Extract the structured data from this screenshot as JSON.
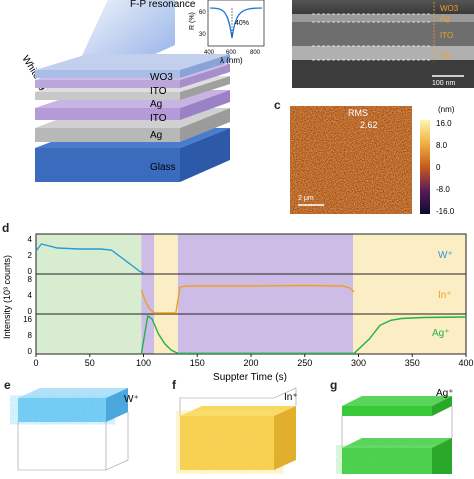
{
  "panel_a": {
    "title": "F-P resonance",
    "light_label": "White light",
    "layers": [
      "WO3",
      "ITO",
      "Ag",
      "ITO",
      "Ag",
      "Glass"
    ],
    "inset": {
      "ylabel": "R (%)",
      "xlabel": "λ (nm)",
      "yticks": [
        "60",
        "30"
      ],
      "xticks": [
        "400",
        "600",
        "800"
      ],
      "annotation": "40%",
      "line_color": "#1f77d4"
    }
  },
  "panel_b": {
    "layer_labels": [
      "WO3",
      "Ag",
      "ITO",
      "Ag"
    ],
    "scalebar": "100 nm"
  },
  "panel_c": {
    "letter": "c",
    "rms_label": "RMS (nm)",
    "rms_value": "2.62",
    "unit": "(nm)",
    "colorbar_ticks": [
      "16.0",
      "8.0",
      "0",
      "-8.0",
      "-16.0"
    ],
    "scalebar": "2 μm"
  },
  "panel_d": {
    "letter": "d",
    "ylabel": "Intensity (10³ counts)",
    "xlabel": "Suppter Time (s)",
    "legend": [
      "W⁺",
      "In⁺",
      "Ag⁺"
    ],
    "yticks_top": [
      "4",
      "2",
      "0"
    ],
    "yticks_mid": [
      "8",
      "4",
      "0"
    ],
    "yticks_bot": [
      "16",
      "8",
      "0"
    ],
    "colors": {
      "W": "#2a9ad8",
      "In": "#f0a020",
      "Ag": "#22b14c",
      "bg_green": "#d8ecd0",
      "bg_purple": "#cdbde6",
      "bg_yellow": "#fbedc4"
    }
  },
  "chart_data": {
    "type": "line",
    "xlabel": "Suppter Time (s)",
    "ylabel": "Intensity (10³ counts)",
    "xlim": [
      0,
      400
    ],
    "xticks": [
      0,
      50,
      100,
      150,
      200,
      250,
      300,
      350,
      400
    ],
    "regions": [
      {
        "from": 0,
        "to": 98,
        "color": "#d8ecd0"
      },
      {
        "from": 98,
        "to": 110,
        "color": "#cdbde6"
      },
      {
        "from": 110,
        "to": 132,
        "color": "#fbedc4"
      },
      {
        "from": 132,
        "to": 295,
        "color": "#cdbde6"
      },
      {
        "from": 295,
        "to": 400,
        "color": "#fbedc4"
      }
    ],
    "series": [
      {
        "name": "W⁺",
        "ylim": [
          0,
          4
        ],
        "x": [
          0,
          5,
          20,
          40,
          60,
          70,
          80,
          90,
          96,
          100
        ],
        "y": [
          2.3,
          3.0,
          2.6,
          2.5,
          2.5,
          2.4,
          1.6,
          0.8,
          0.3,
          0.1
        ]
      },
      {
        "name": "In⁺",
        "ylim": [
          0,
          8
        ],
        "x": [
          98,
          102,
          106,
          110,
          130,
          134,
          140,
          200,
          250,
          285,
          292,
          296
        ],
        "y": [
          4.8,
          2.4,
          1.0,
          0.2,
          0.2,
          5.4,
          5.6,
          5.6,
          5.7,
          5.6,
          5.2,
          4.4
        ]
      },
      {
        "name": "Ag⁺",
        "ylim": [
          0,
          16
        ],
        "x": [
          98,
          104,
          108,
          114,
          120,
          126,
          132,
          296,
          310,
          320,
          330,
          340,
          360,
          400
        ],
        "y": [
          0,
          15.2,
          14.0,
          8.0,
          4.0,
          1.5,
          0.3,
          0.3,
          6.0,
          11.5,
          13.5,
          14.2,
          14.6,
          14.8
        ]
      }
    ]
  },
  "panel_e": {
    "letter": "e",
    "ion": "W⁺",
    "color": "#5cc0f0"
  },
  "panel_f": {
    "letter": "f",
    "ion": "In⁺",
    "color": "#f6c83c"
  },
  "panel_g": {
    "letter": "g",
    "ion": "Ag⁺",
    "color": "#38c838"
  }
}
